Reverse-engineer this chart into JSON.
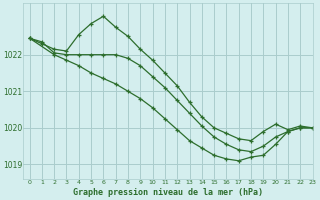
{
  "title": "Graphe pression niveau de la mer (hPa)",
  "bg_color": "#d4eeee",
  "grid_color": "#aacccc",
  "line_color": "#2d6e2d",
  "xlim": [
    -0.5,
    23
  ],
  "ylim": [
    1018.6,
    1023.4
  ],
  "yticks": [
    1019,
    1020,
    1021,
    1022
  ],
  "xticks": [
    0,
    1,
    2,
    3,
    4,
    5,
    6,
    7,
    8,
    9,
    10,
    11,
    12,
    13,
    14,
    15,
    16,
    17,
    18,
    19,
    20,
    21,
    22,
    23
  ],
  "line1_x": [
    0,
    1,
    2,
    3,
    4,
    5,
    6,
    7,
    8,
    9,
    10,
    11,
    12,
    13,
    14,
    15,
    16,
    17,
    18,
    19,
    20,
    21,
    22,
    23
  ],
  "line1_y": [
    1022.45,
    1022.3,
    1022.15,
    1022.1,
    1022.55,
    1022.85,
    1023.05,
    1022.75,
    1022.5,
    1022.15,
    1021.85,
    1021.5,
    1021.15,
    1020.7,
    1020.3,
    1020.0,
    1019.85,
    1019.7,
    1019.65,
    1019.9,
    1020.1,
    1019.95,
    1020.05,
    1020.0
  ],
  "line2_x": [
    0,
    1,
    2,
    3,
    4,
    5,
    6,
    7,
    8,
    9,
    10,
    11,
    12,
    13,
    14,
    15,
    16,
    17,
    18,
    19,
    20,
    21,
    22,
    23
  ],
  "line2_y": [
    1022.45,
    1022.35,
    1022.05,
    1022.0,
    1022.0,
    1022.0,
    1022.0,
    1022.0,
    1021.9,
    1021.7,
    1021.4,
    1021.1,
    1020.75,
    1020.4,
    1020.05,
    1019.75,
    1019.55,
    1019.4,
    1019.35,
    1019.5,
    1019.75,
    1019.9,
    1020.0,
    1020.0
  ],
  "line3_x": [
    0,
    2,
    3,
    4,
    5,
    6,
    7,
    8,
    9,
    10,
    11,
    12,
    13,
    14,
    15,
    16,
    17,
    18,
    19,
    20,
    21,
    22,
    23
  ],
  "line3_y": [
    1022.45,
    1022.0,
    1021.85,
    1021.7,
    1021.5,
    1021.35,
    1021.2,
    1021.0,
    1020.8,
    1020.55,
    1020.25,
    1019.95,
    1019.65,
    1019.45,
    1019.25,
    1019.15,
    1019.1,
    1019.2,
    1019.25,
    1019.55,
    1019.9,
    1020.0,
    1020.0
  ]
}
